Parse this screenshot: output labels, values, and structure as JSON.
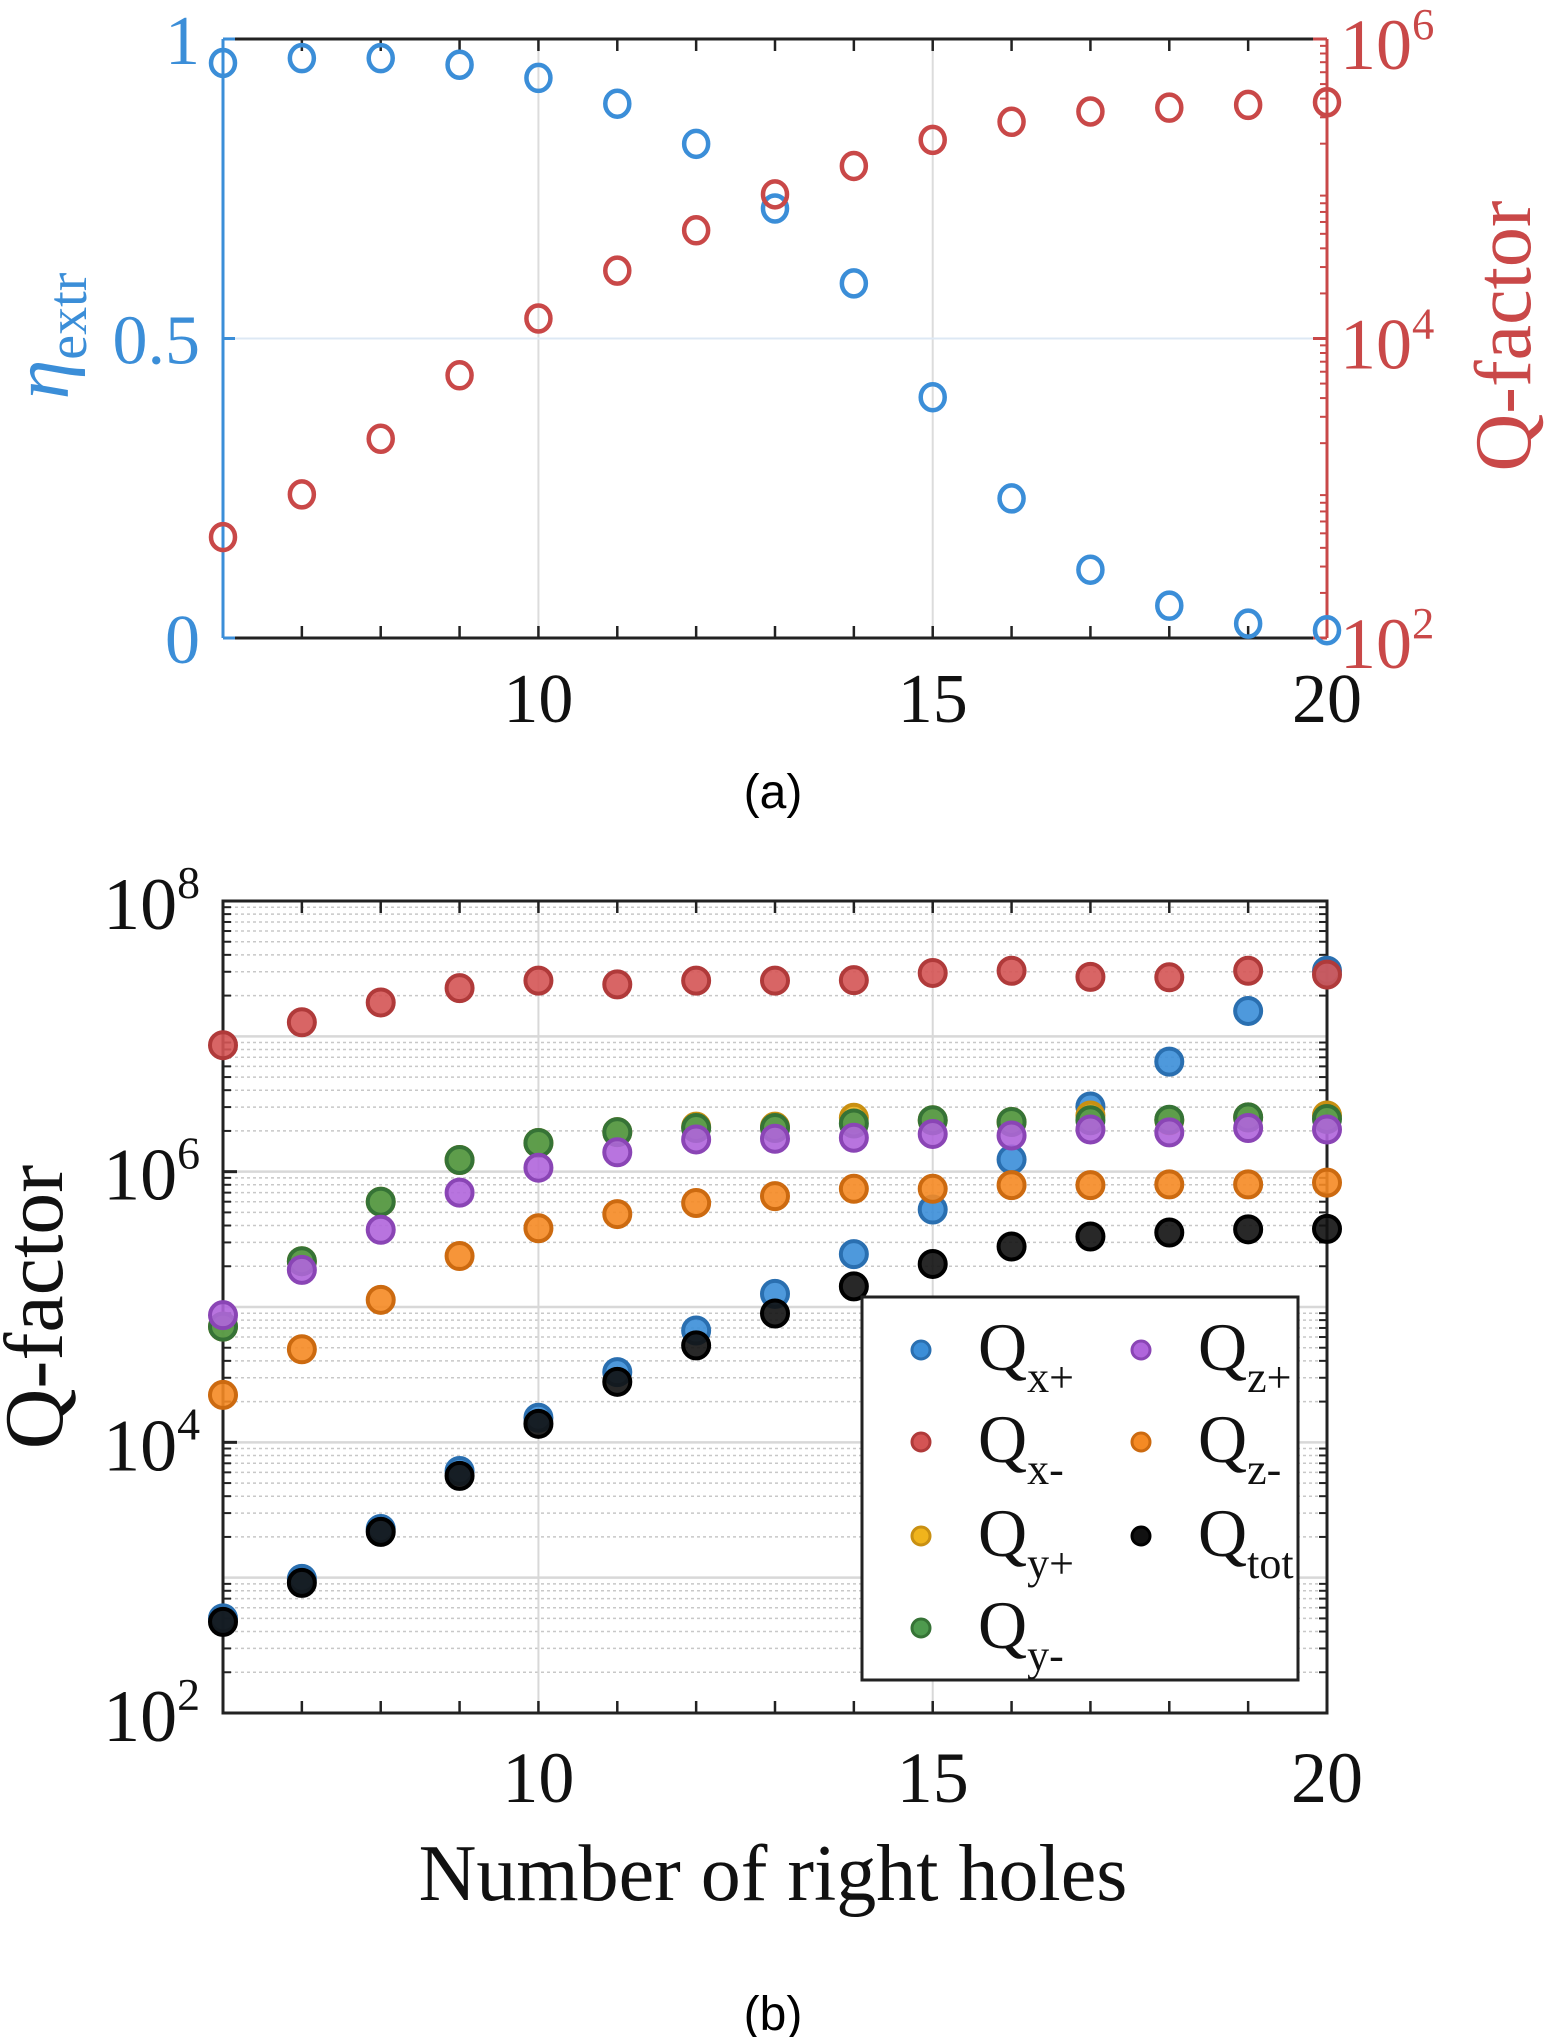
{
  "chart_data": [
    {
      "type": "scatter",
      "panel_label": "(a)",
      "xlabel": "",
      "xlim": [
        6,
        20
      ],
      "xticks": [
        10,
        15,
        20
      ],
      "xtick_labels": [
        "10",
        "15",
        "20"
      ],
      "grid": true,
      "y_left": {
        "label_main": "η",
        "label_sub": "extr",
        "scale": "linear",
        "lim": [
          0,
          1
        ],
        "ticks": [
          0,
          0.5,
          1
        ],
        "tick_labels": [
          "0",
          "0.5",
          "1"
        ],
        "color": "#3b8ed8"
      },
      "y_right": {
        "label": "Q-factor",
        "scale": "log",
        "lim": [
          100,
          1000000
        ],
        "ticks": [
          100,
          10000,
          1000000
        ],
        "tick_labels": [
          {
            "base": "10",
            "exp": "2"
          },
          {
            "base": "10",
            "exp": "4"
          },
          {
            "base": "10",
            "exp": "6"
          }
        ],
        "color": "#c94848"
      },
      "series": [
        {
          "name": "η_extr",
          "axis": "left",
          "marker": "open-circle",
          "color": "#3b8ed8",
          "x": [
            6,
            7,
            8,
            9,
            10,
            11,
            12,
            13,
            14,
            15,
            16,
            17,
            18,
            19,
            20
          ],
          "y": [
            0.96,
            0.968,
            0.968,
            0.957,
            0.935,
            0.892,
            0.825,
            0.717,
            0.592,
            0.402,
            0.233,
            0.114,
            0.054,
            0.024,
            0.013
          ]
        },
        {
          "name": "Q-factor",
          "axis": "right",
          "marker": "open-circle",
          "color": "#c94848",
          "x": [
            6,
            7,
            8,
            9,
            10,
            11,
            12,
            13,
            14,
            15,
            16,
            17,
            18,
            19,
            20
          ],
          "y": [
            472,
            910,
            2140,
            5680,
            13600,
            28400,
            52800,
            91800,
            142000,
            212000,
            280000,
            328000,
            348000,
            363000,
            378000
          ]
        }
      ]
    },
    {
      "type": "scatter",
      "panel_label": "(b)",
      "xlabel": "Number of right holes",
      "ylabel": "Q-factor",
      "xlim": [
        6,
        20
      ],
      "xticks": [
        10,
        15,
        20
      ],
      "xtick_labels": [
        "10",
        "15",
        "20"
      ],
      "yscale": "log",
      "ylim": [
        100,
        100000000
      ],
      "yticks": [
        100,
        10000,
        1000000,
        100000000
      ],
      "ytick_labels": [
        {
          "base": "10",
          "exp": "2"
        },
        {
          "base": "10",
          "exp": "4"
        },
        {
          "base": "10",
          "exp": "6"
        },
        {
          "base": "10",
          "exp": "8"
        }
      ],
      "grid": true,
      "legend_position": "bottom-right",
      "series": [
        {
          "name": "Qx+",
          "label": "Q",
          "sub": "x+",
          "color": "#3b8ed8",
          "edge": "#2a6fb0",
          "x": [
            6,
            7,
            8,
            9,
            10,
            11,
            12,
            13,
            14,
            15,
            16,
            17,
            18,
            19,
            20
          ],
          "y": [
            500,
            980,
            2290,
            6140,
            15200,
            33000,
            67000,
            125000,
            246000,
            525000,
            1230000,
            3030000,
            6500000,
            15400000,
            30500000
          ]
        },
        {
          "name": "Qx-",
          "label": "Q",
          "sub": "x-",
          "color": "#d45454",
          "edge": "#b03a3a",
          "x": [
            6,
            7,
            8,
            9,
            10,
            11,
            12,
            13,
            14,
            15,
            16,
            17,
            18,
            19,
            20
          ],
          "y": [
            8600000,
            12700000,
            17800000,
            22700000,
            25800000,
            24200000,
            25800000,
            25800000,
            26000000,
            29400000,
            30500000,
            27500000,
            27300000,
            30500000,
            28600000
          ]
        },
        {
          "name": "Qy+",
          "label": "Q",
          "sub": "y+",
          "color": "#f0b41c",
          "edge": "#c99012",
          "x": [
            6,
            7,
            8,
            9,
            10,
            11,
            12,
            13,
            14,
            15,
            16,
            17,
            18,
            19,
            20
          ],
          "y": [
            71600,
            218000,
            600000,
            1220000,
            1630000,
            1960000,
            2150000,
            2150000,
            2500000,
            2400000,
            2330000,
            2600000,
            2400000,
            2520000,
            2600000
          ]
        },
        {
          "name": "Qy-",
          "label": "Q",
          "sub": "y-",
          "color": "#4e9a4e",
          "edge": "#367336",
          "x": [
            6,
            7,
            8,
            9,
            10,
            11,
            12,
            13,
            14,
            15,
            16,
            17,
            18,
            19,
            20
          ],
          "y": [
            71600,
            218000,
            600000,
            1220000,
            1630000,
            1960000,
            2100000,
            2100000,
            2270000,
            2400000,
            2330000,
            2400000,
            2420000,
            2520000,
            2450000
          ]
        },
        {
          "name": "Qz+",
          "label": "Q",
          "sub": "z+",
          "color": "#b065dc",
          "edge": "#8a45b5",
          "x": [
            6,
            7,
            8,
            9,
            10,
            11,
            12,
            13,
            14,
            15,
            16,
            17,
            18,
            19,
            20
          ],
          "y": [
            87000,
            188000,
            372000,
            700000,
            1070000,
            1390000,
            1730000,
            1750000,
            1780000,
            1900000,
            1850000,
            2050000,
            1950000,
            2100000,
            2050000
          ]
        },
        {
          "name": "Qz-",
          "label": "Q",
          "sub": "z-",
          "color": "#f58a24",
          "edge": "#cc6a10",
          "x": [
            6,
            7,
            8,
            9,
            10,
            11,
            12,
            13,
            14,
            15,
            16,
            17,
            18,
            19,
            20
          ],
          "y": [
            22400,
            48700,
            113000,
            238000,
            382000,
            486000,
            587000,
            660000,
            747000,
            747000,
            795000,
            795000,
            805000,
            805000,
            830000
          ]
        },
        {
          "name": "Qtot",
          "label": "Q",
          "sub": "tot",
          "color": "#111111",
          "edge": "#000000",
          "x": [
            6,
            7,
            8,
            9,
            10,
            11,
            12,
            13,
            14,
            15,
            16,
            17,
            18,
            19,
            20
          ],
          "y": [
            471,
            915,
            2180,
            5650,
            13700,
            28000,
            52000,
            89500,
            142000,
            208000,
            280000,
            332000,
            355000,
            375000,
            378000
          ]
        }
      ]
    }
  ]
}
